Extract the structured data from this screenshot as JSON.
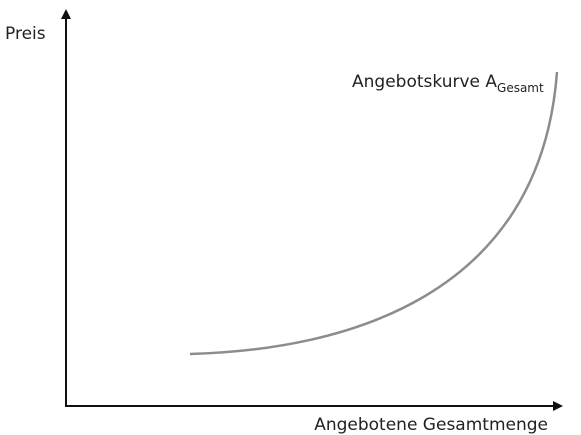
{
  "axes": {
    "y_label": "Preis",
    "x_label": "Angebotene Gesamtmenge"
  },
  "curve": {
    "label": "Angebotskurve A",
    "subscript": "Gesamt"
  }
}
